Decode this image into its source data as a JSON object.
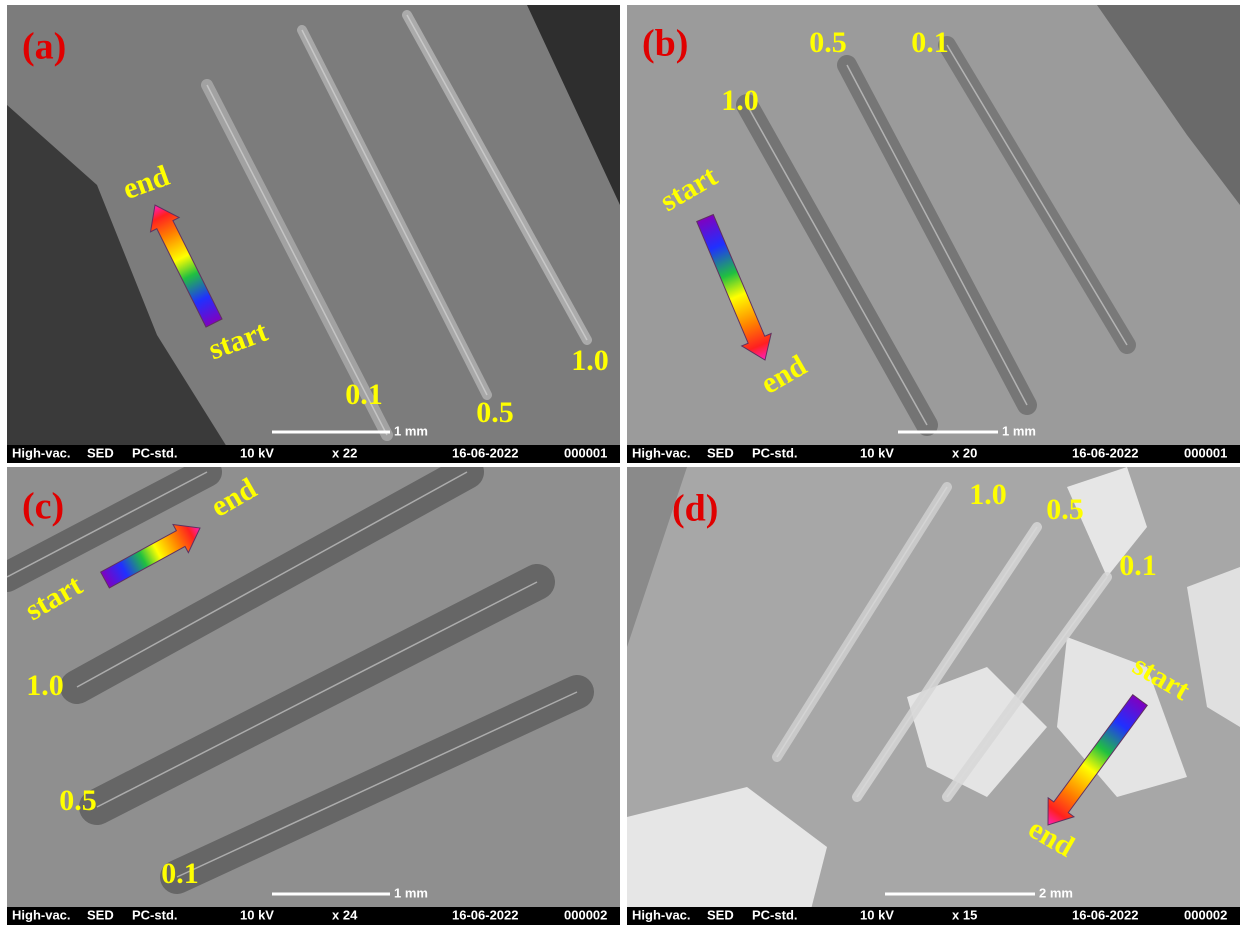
{
  "panels": [
    {
      "label": "(a)",
      "annotations": [
        "end",
        "start",
        "0.1",
        "0.5",
        "1.0"
      ],
      "scale_bar": "1 mm",
      "info": [
        "High-vac.",
        "SED",
        "PC-std.",
        "10 kV",
        "x 22",
        "16-06-2022",
        "000001"
      ]
    },
    {
      "label": "(b)",
      "annotations": [
        "0.5",
        "0.1",
        "1.0",
        "start",
        "end"
      ],
      "scale_bar": "1 mm",
      "info": [
        "High-vac.",
        "SED",
        "PC-std.",
        "10 kV",
        "x 20",
        "16-06-2022",
        "000001"
      ]
    },
    {
      "label": "(c)",
      "annotations": [
        "end",
        "start",
        "1.0",
        "0.5",
        "0.1"
      ],
      "scale_bar": "1 mm",
      "info": [
        "High-vac.",
        "SED",
        "PC-std.",
        "10 kV",
        "x 24",
        "16-06-2022",
        "000002"
      ]
    },
    {
      "label": "(d)",
      "annotations": [
        "1.0",
        "0.5",
        "0.1",
        "start",
        "end"
      ],
      "scale_bar": "2 mm",
      "info": [
        "High-vac.",
        "SED",
        "PC-std.",
        "10 kV",
        "x 15",
        "16-06-2022",
        "000002"
      ]
    }
  ]
}
